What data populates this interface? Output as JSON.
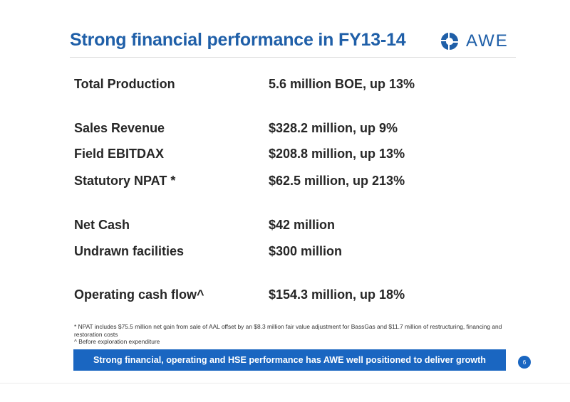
{
  "slide": {
    "title": "Strong financial performance in FY13-14",
    "logo_text": "AWE",
    "brand_color": "#1f5fa8",
    "metrics": [
      {
        "label": "Total Production",
        "value": "5.6 million BOE, up 13%"
      },
      {
        "label": "Sales Revenue",
        "value": "$328.2 million, up 9%"
      },
      {
        "label": "Field EBITDAX",
        "value": "$208.8 million, up 13%"
      },
      {
        "label": "Statutory NPAT *",
        "value": "$62.5 million, up 213%"
      },
      {
        "label": "Net Cash",
        "value": "$42 million"
      },
      {
        "label": "Undrawn facilities",
        "value": "$300 million"
      },
      {
        "label": "Operating cash flow^",
        "value": "$154.3 million, up 18%"
      }
    ],
    "footnotes": [
      "* NPAT includes $75.5 million net gain from sale of AAL offset by an $8.3 million fair value adjustment for BassGas and $11.7 million of restructuring, financing and restoration costs",
      "^ Before exploration expenditure"
    ],
    "banner_text": "Strong financial, operating and HSE performance has AWE well positioned to deliver growth",
    "banner_color": "#1a66c1",
    "page_number": "6"
  }
}
